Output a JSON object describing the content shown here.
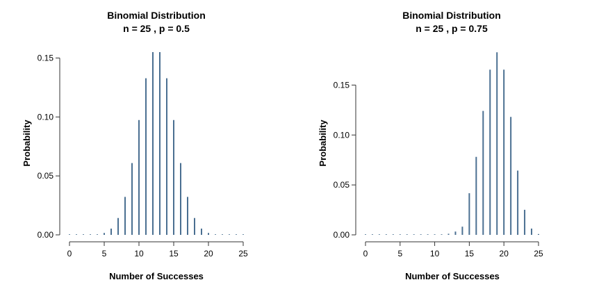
{
  "chart_data": [
    {
      "type": "bar",
      "title": "Binomial Distribution",
      "subtitle": "n = 25 , p = 0.5",
      "xlabel": "Number of Successes",
      "ylabel": "Probability",
      "xlim": [
        0,
        25
      ],
      "ylim": [
        0,
        0.155
      ],
      "x_ticks": [
        "0",
        "5",
        "10",
        "15",
        "20",
        "25"
      ],
      "y_ticks": [
        "0.00",
        "0.05",
        "0.10",
        "0.15"
      ],
      "bar_color": "#4a6f91",
      "grid": false,
      "x": [
        0,
        1,
        2,
        3,
        4,
        5,
        6,
        7,
        8,
        9,
        10,
        11,
        12,
        13,
        14,
        15,
        16,
        17,
        18,
        19,
        20,
        21,
        22,
        23,
        24,
        25
      ],
      "values": [
        0.0,
        0.0,
        0.0,
        0.0001,
        0.0004,
        0.0016,
        0.0053,
        0.0143,
        0.0322,
        0.0609,
        0.0974,
        0.1328,
        0.155,
        0.155,
        0.1328,
        0.0974,
        0.0609,
        0.0322,
        0.0143,
        0.0053,
        0.0016,
        0.0004,
        0.0001,
        0.0,
        0.0,
        0.0
      ]
    },
    {
      "type": "bar",
      "title": "Binomial Distribution",
      "subtitle": "n = 25 , p = 0.75",
      "xlabel": "Number of Successes",
      "ylabel": "Probability",
      "xlim": [
        0,
        25
      ],
      "ylim": [
        0,
        0.183
      ],
      "x_ticks": [
        "0",
        "5",
        "10",
        "15",
        "20",
        "25"
      ],
      "y_ticks": [
        "0.00",
        "0.05",
        "0.10",
        "0.15"
      ],
      "bar_color": "#4a6f91",
      "grid": false,
      "x": [
        0,
        1,
        2,
        3,
        4,
        5,
        6,
        7,
        8,
        9,
        10,
        11,
        12,
        13,
        14,
        15,
        16,
        17,
        18,
        19,
        20,
        21,
        22,
        23,
        24,
        25
      ],
      "values": [
        0.0,
        0.0,
        0.0,
        0.0,
        0.0,
        0.0,
        0.0,
        0.0,
        0.0,
        0.0,
        0.0001,
        0.0003,
        0.0011,
        0.0033,
        0.0082,
        0.0417,
        0.0781,
        0.1241,
        0.1654,
        0.1828,
        0.1654,
        0.1181,
        0.0644,
        0.0251,
        0.0063,
        0.0008
      ]
    }
  ]
}
